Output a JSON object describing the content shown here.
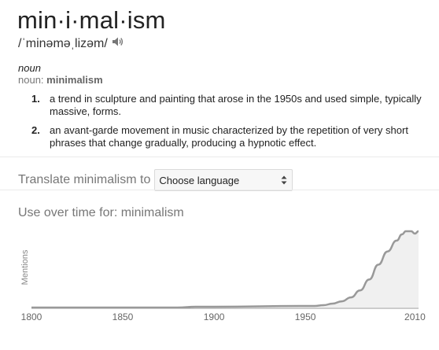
{
  "entry": {
    "headword": "min·i·mal·ism",
    "pronunciation": "/ˈminəməˌlizəm/",
    "pos_label": "noun",
    "pos_prefix": "noun: ",
    "pos_word": "minimalism",
    "definitions": [
      {
        "num": "1.",
        "text": "a trend in sculpture and painting that arose in the 1950s and used simple, typically massive, forms."
      },
      {
        "num": "2.",
        "text": "an avant-garde movement in music characterized by the repetition of very short phrases that change gradually, producing a hypnotic effect."
      }
    ]
  },
  "translate": {
    "label": "Translate minimalism to",
    "select_value": "Choose language"
  },
  "usage": {
    "title": "Use over time for: minimalism"
  },
  "icons": {
    "speaker": "speaker-icon",
    "select_arrows": "up-down-arrows-icon"
  },
  "colors": {
    "text": "#222222",
    "muted": "#777777",
    "line": "#999999",
    "fill": "#f0f0f0"
  },
  "chart_data": {
    "type": "area",
    "title": "",
    "xlabel": "",
    "ylabel": "Mentions",
    "xlim": [
      1800,
      2012
    ],
    "ylim": [
      0,
      1
    ],
    "x_ticks": [
      1800,
      1850,
      1900,
      1950,
      2010
    ],
    "grid": false,
    "legend": "none",
    "series": [
      {
        "x": [
          1800,
          1850,
          1880,
          1890,
          1900,
          1950,
          1955,
          1960,
          1965,
          1970,
          1975,
          1980,
          1985,
          1990,
          1995,
          2000,
          2003,
          2005,
          2008,
          2010,
          2012
        ],
        "values": [
          0,
          0,
          0,
          0.01,
          0.01,
          0.02,
          0.02,
          0.03,
          0.05,
          0.08,
          0.13,
          0.22,
          0.36,
          0.55,
          0.72,
          0.86,
          0.94,
          0.98,
          0.98,
          0.95,
          0.98
        ]
      }
    ]
  }
}
